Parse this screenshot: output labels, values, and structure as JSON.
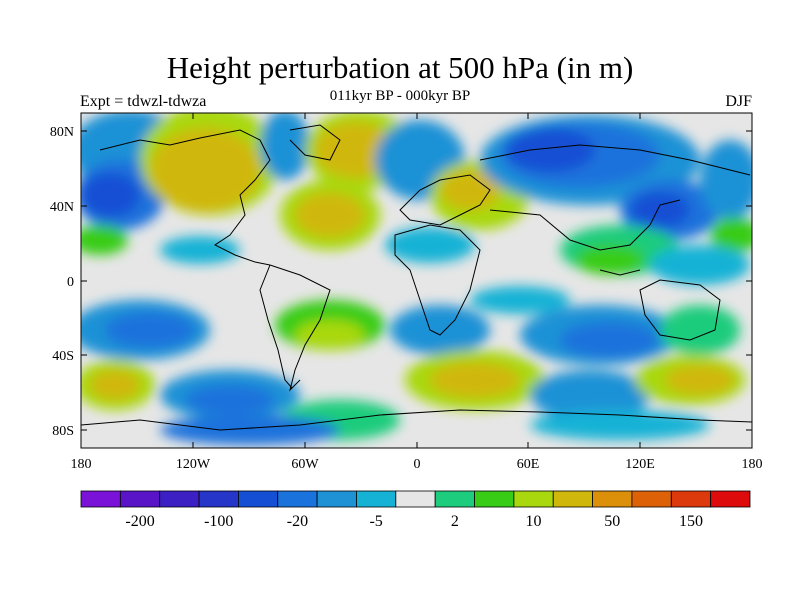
{
  "title": "Height perturbation at 500 hPa (in m)",
  "subtitle": "011kyr BP - 000kyr BP",
  "left_label": "Expt = tdwzl-tdwza",
  "right_label": "DJF",
  "lat_ticks": [
    "80N",
    "40N",
    "0",
    "40S",
    "80S"
  ],
  "lon_ticks": [
    "180",
    "120W",
    "60W",
    "0",
    "60E",
    "120E",
    "180"
  ],
  "colorbar": {
    "colors": [
      "#7a12d8",
      "#5a14c8",
      "#3d20c4",
      "#2636c9",
      "#1550d4",
      "#1a72dc",
      "#1f92d6",
      "#16b2d6",
      "#e6e6e6",
      "#1ecc7d",
      "#38cc17",
      "#a9d80f",
      "#d0b70c",
      "#dc8f08",
      "#dd6106",
      "#dc3a0d",
      "#dd0b0b"
    ],
    "labels": [
      "-200",
      "-100",
      "-20",
      "-5",
      "2",
      "10",
      "50",
      "150"
    ]
  }
}
